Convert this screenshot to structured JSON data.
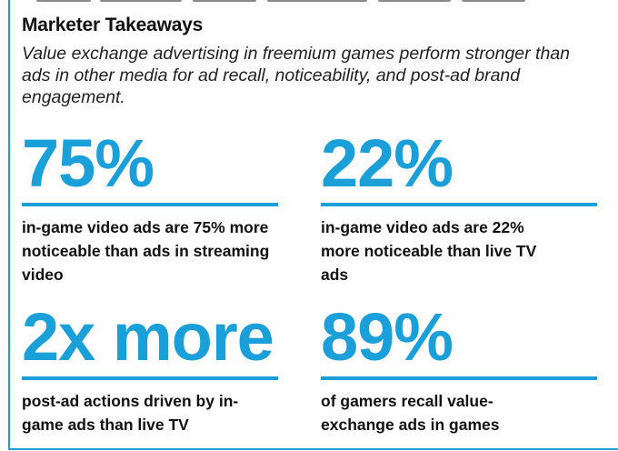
{
  "header": {
    "title": "Marketer Takeaways",
    "intro": "Value exchange advertising in freemium games perform stronger than ads in other media for ad recall, noticeability, and post-ad brand engagement."
  },
  "stats": [
    {
      "value": "75%",
      "description": "in-game video ads are 75% more noticeable than ads in streaming video"
    },
    {
      "value": "22%",
      "description": "in-game video ads are 22% more noticeable than live TV ads"
    },
    {
      "value": "2x more",
      "description": "post-ad actions driven by in-game ads than live TV"
    },
    {
      "value": "89%",
      "description": "of gamers recall value-exchange ads in games"
    }
  ],
  "colors": {
    "accent": "#1a9fd8",
    "text": "#111111"
  }
}
